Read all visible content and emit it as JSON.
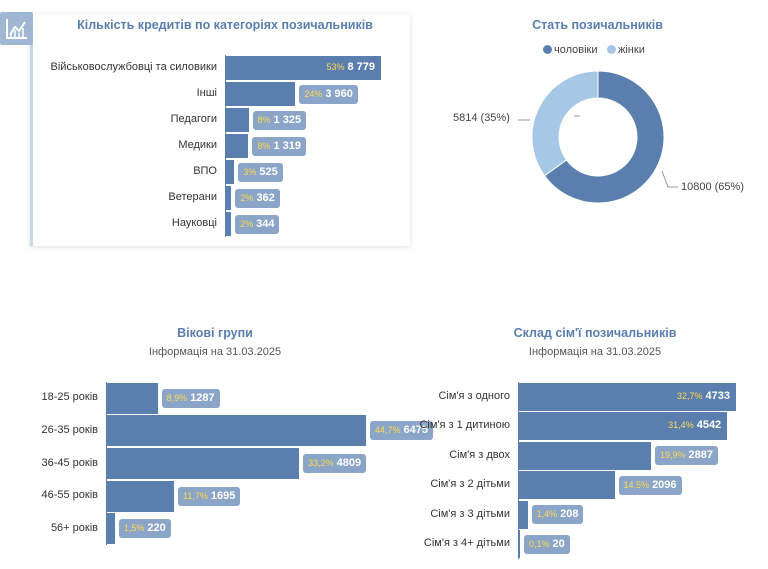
{
  "chart_data": [
    {
      "type": "bar",
      "orientation": "horizontal",
      "title": "Кількість кредитів по категоріях позичальників",
      "categories": [
        "Військовослужбовці та силовики",
        "Інші",
        "Педагоги",
        "Медики",
        "ВПО",
        "Ветерани",
        "Науковці"
      ],
      "values": [
        8779,
        3960,
        1325,
        1319,
        525,
        362,
        344
      ],
      "value_labels": [
        "8 779",
        "3 960",
        "1 325",
        "1 319",
        "525",
        "362",
        "344"
      ],
      "percent_labels": [
        "53%",
        "24%",
        "8%",
        "8%",
        "3%",
        "2%",
        "2%"
      ],
      "xlim": [
        0,
        8779
      ]
    },
    {
      "type": "pie",
      "donut": true,
      "title": "Стать позичальників",
      "legend_position": "top",
      "series": [
        {
          "name": "чоловіки",
          "value": 10800,
          "label": "10800 (65%)",
          "color": "#5a7fae"
        },
        {
          "name": "жінки",
          "value": 5814,
          "label": "5814 (35%)",
          "color": "#a6c8e6"
        }
      ]
    },
    {
      "type": "bar",
      "orientation": "horizontal",
      "title": "Вікові групи",
      "subtitle": "Інформація на 31.03.2025",
      "categories": [
        "18-25 років",
        "26-35 років",
        "36-45 років",
        "46-55 років",
        "56+ років"
      ],
      "values": [
        1287,
        6475,
        4809,
        1695,
        220
      ],
      "percent_labels": [
        "8,9%",
        "44,7%",
        "33,2%",
        "11,7%",
        "1,5%"
      ],
      "xlim": [
        0,
        6475
      ]
    },
    {
      "type": "bar",
      "orientation": "horizontal",
      "title": "Склад сім'ї позичальників",
      "subtitle": "Інформація на 31.03.2025",
      "categories": [
        "Сім'я з одного",
        "Сім'я з 1 дитиною",
        "Сім'я з двох",
        "Сім'я з 2 дітьми",
        "Сім'я з 3 дітьми",
        "Сім'я з 4+ дітьми"
      ],
      "values": [
        4733,
        4542,
        2887,
        2096,
        208,
        20
      ],
      "percent_labels": [
        "32,7%",
        "31,4%",
        "19,9%",
        "14,5%",
        "1,4%",
        "0,1%"
      ],
      "xlim": [
        0,
        4733
      ]
    }
  ],
  "colors": {
    "bar": "#5a7fae",
    "pill": "#8aa5c7",
    "percent": "#ffd84d",
    "female": "#a6c8e6"
  },
  "icons": {
    "corner": "chart-line-icon"
  }
}
